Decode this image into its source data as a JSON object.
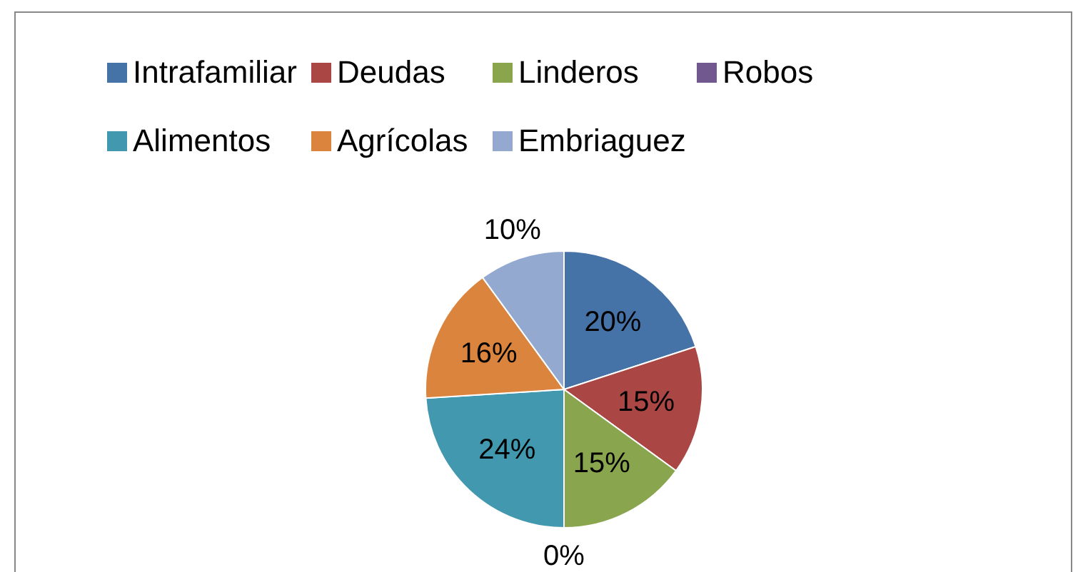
{
  "chart_data": {
    "type": "pie",
    "categories": [
      "Intrafamiliar",
      "Deudas",
      "Linderos",
      "Robos",
      "Alimentos",
      "Agrícolas",
      "Embriaguez"
    ],
    "values": [
      20,
      15,
      15,
      0,
      24,
      16,
      10
    ],
    "value_labels": [
      "20%",
      "15%",
      "15%",
      "0%",
      "24%",
      "16%",
      "10%"
    ],
    "colors": [
      "#4572a7",
      "#aa4643",
      "#89a54e",
      "#71588f",
      "#4198af",
      "#db843d",
      "#93a9cf"
    ],
    "legend": "top"
  }
}
